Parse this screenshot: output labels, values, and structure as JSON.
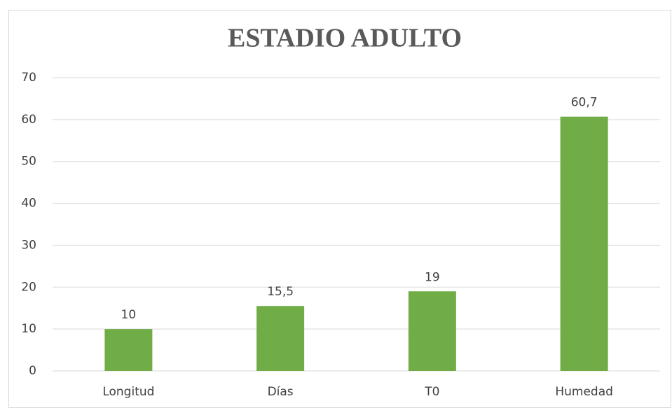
{
  "chart_data": {
    "type": "bar",
    "title": "ESTADIO ADULTO",
    "categories": [
      "Longitud",
      "Días",
      "T0",
      "Humedad"
    ],
    "values": [
      10,
      15.5,
      19,
      60.7
    ],
    "value_labels": [
      "10",
      "15,5",
      "19",
      "60,7"
    ],
    "color": "#70ad47",
    "ylim": [
      0,
      70
    ],
    "yticks": [
      0,
      10,
      20,
      30,
      40,
      50,
      60,
      70
    ],
    "grid": true
  }
}
